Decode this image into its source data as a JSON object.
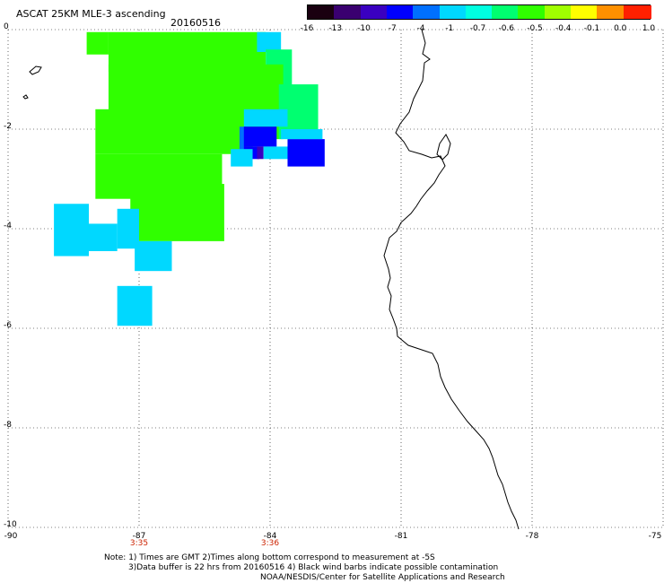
{
  "header": {
    "title": "ASCAT 25KM MLE-3 ascending",
    "date": "20160516"
  },
  "colorbar": {
    "labels": [
      "-16",
      "-13",
      "-10",
      "-7",
      "-4",
      "-1",
      "-0.7",
      "-0.6",
      "-0.5",
      "-0.4",
      "-0.1",
      "0.0",
      "1.0"
    ],
    "colors": [
      "#1a0010",
      "#3a0070",
      "#3a00c0",
      "#0000ff",
      "#0070ff",
      "#00d8ff",
      "#00ffe0",
      "#00ff70",
      "#30ff00",
      "#a0ff00",
      "#ffff00",
      "#ff9000",
      "#ff2000"
    ]
  },
  "axes": {
    "y_ticks": [
      "0",
      "-2",
      "-4",
      "-6",
      "-8",
      "-10"
    ],
    "x_ticks": [
      "-90",
      "-87",
      "-84",
      "-81",
      "-78",
      "-75"
    ],
    "time_ticks": [
      {
        "label": "3:35",
        "lon": -87
      },
      {
        "label": "3:36",
        "lon": -84
      }
    ],
    "lon_range": [
      -90,
      -75
    ],
    "lat_range": [
      -10,
      0
    ],
    "grid": "dotted"
  },
  "map_data": {
    "cells": [
      {
        "lon": -88.2,
        "lat": -0.05,
        "w": 0.5,
        "h": 0.45,
        "color": "#30ff00"
      },
      {
        "lon": -87.7,
        "lat": -0.05,
        "w": 3.6,
        "h": 0.8,
        "color": "#30ff00"
      },
      {
        "lon": -84.3,
        "lat": -0.05,
        "w": 0.55,
        "h": 0.4,
        "color": "#00d8ff"
      },
      {
        "lon": -84.1,
        "lat": -0.4,
        "w": 0.6,
        "h": 0.9,
        "color": "#00ff70"
      },
      {
        "lon": -87.7,
        "lat": -0.7,
        "w": 4.0,
        "h": 1.5,
        "color": "#30ff00"
      },
      {
        "lon": -88.0,
        "lat": -1.6,
        "w": 3.6,
        "h": 0.9,
        "color": "#30ff00"
      },
      {
        "lon": -83.8,
        "lat": -1.1,
        "w": 0.9,
        "h": 1.1,
        "color": "#00ff70"
      },
      {
        "lon": -84.6,
        "lat": -1.6,
        "w": 1.0,
        "h": 0.35,
        "color": "#00d8ff"
      },
      {
        "lon": -84.7,
        "lat": -1.95,
        "w": 0.15,
        "h": 0.6,
        "color": "#0070ff"
      },
      {
        "lon": -84.6,
        "lat": -1.95,
        "w": 0.75,
        "h": 0.4,
        "color": "#0000ff"
      },
      {
        "lon": -84.6,
        "lat": -2.35,
        "w": 0.35,
        "h": 0.25,
        "color": "#0000ff"
      },
      {
        "lon": -84.3,
        "lat": -2.35,
        "w": 0.15,
        "h": 0.25,
        "color": "#3a00c0"
      },
      {
        "lon": -84.15,
        "lat": -2.35,
        "w": 1.0,
        "h": 0.25,
        "color": "#00d8ff"
      },
      {
        "lon": -83.6,
        "lat": -2.2,
        "w": 0.85,
        "h": 0.55,
        "color": "#0000ff"
      },
      {
        "lon": -83.75,
        "lat": -2.0,
        "w": 0.95,
        "h": 0.2,
        "color": "#00d8ff"
      },
      {
        "lon": -84.9,
        "lat": -2.4,
        "w": 0.5,
        "h": 0.35,
        "color": "#00d8ff"
      },
      {
        "lon": -88.0,
        "lat": -2.5,
        "w": 2.9,
        "h": 0.9,
        "color": "#30ff00"
      },
      {
        "lon": -87.2,
        "lat": -2.6,
        "w": 1.5,
        "h": 0.5,
        "color": "#30ff00"
      },
      {
        "lon": -87.2,
        "lat": -3.1,
        "w": 2.15,
        "h": 1.15,
        "color": "#30ff00"
      },
      {
        "lon": -88.95,
        "lat": -3.5,
        "w": 0.8,
        "h": 1.05,
        "color": "#00d8ff"
      },
      {
        "lon": -88.3,
        "lat": -3.9,
        "w": 0.8,
        "h": 0.55,
        "color": "#00d8ff"
      },
      {
        "lon": -87.5,
        "lat": -3.6,
        "w": 0.5,
        "h": 0.8,
        "color": "#00d8ff"
      },
      {
        "lon": -87.1,
        "lat": -4.25,
        "w": 0.85,
        "h": 0.6,
        "color": "#00d8ff"
      },
      {
        "lon": -87.5,
        "lat": -5.15,
        "w": 0.8,
        "h": 0.8,
        "color": "#00d8ff"
      }
    ]
  },
  "notes": {
    "line1": "Note: 1) Times are GMT 2)Times along bottom correspond to measurement at -5S",
    "line2": "3)Data buffer is 22 hrs from 20160516 4) Black wind barbs indicate possible contamination",
    "line3": "NOAA/NESDIS/Center for Satellite Applications and Research"
  }
}
